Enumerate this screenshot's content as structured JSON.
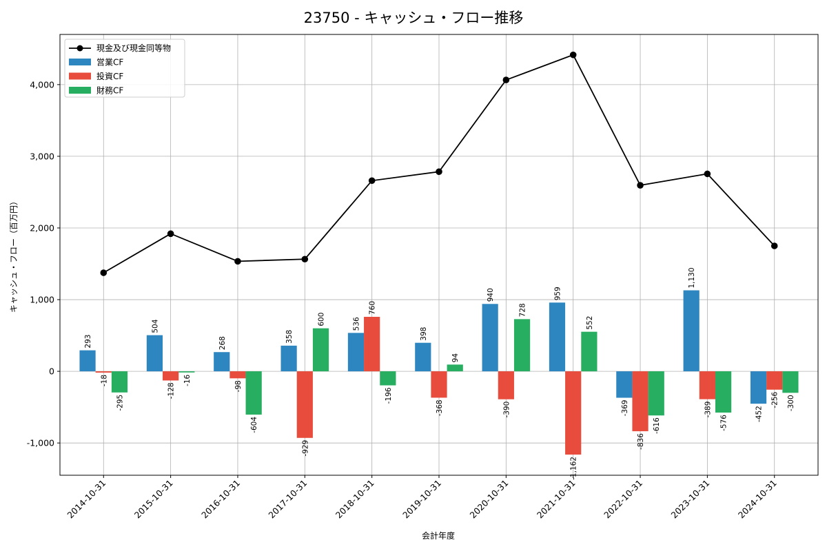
{
  "chart_data": {
    "type": "bar",
    "title": "23750 - キャッシュ・フロー推移",
    "xlabel": "会計年度",
    "ylabel": "キャッシュ・フロー（百万円）",
    "ylim": [
      -1450,
      4700
    ],
    "yticks": [
      -1000,
      0,
      1000,
      2000,
      3000,
      4000
    ],
    "ytick_labels": [
      "-1,000",
      "0",
      "1,000",
      "2,000",
      "3,000",
      "4,000"
    ],
    "grid": true,
    "legend_position": "top-left",
    "categories": [
      "2014-10-31",
      "2015-10-31",
      "2016-10-31",
      "2017-10-31",
      "2018-10-31",
      "2019-10-31",
      "2020-10-31",
      "2021-10-31",
      "2022-10-31",
      "2023-10-31",
      "2024-10-31"
    ],
    "line_series": {
      "name": "現金及び現金同等物",
      "color": "#000000",
      "values": [
        1375,
        1920,
        1535,
        1565,
        2660,
        2785,
        4065,
        4415,
        2595,
        2755,
        1750
      ]
    },
    "series": [
      {
        "name": "営業CF",
        "color": "#2E86C1",
        "values": [
          293,
          504,
          268,
          358,
          536,
          398,
          940,
          959,
          -369,
          1130,
          -452
        ],
        "labels": [
          "293",
          "504",
          "268",
          "358",
          "536",
          "398",
          "940",
          "959",
          "-369",
          "1,130",
          "-452"
        ]
      },
      {
        "name": "投資CF",
        "color": "#E74C3C",
        "values": [
          -18,
          -128,
          -98,
          -929,
          760,
          -368,
          -390,
          -1162,
          -836,
          -389,
          -256
        ],
        "labels": [
          "-18",
          "-128",
          "-98",
          "-929",
          "760",
          "-368",
          "-390",
          "-1,162",
          "-836",
          "-389",
          "-256"
        ]
      },
      {
        "name": "財務CF",
        "color": "#27AE60",
        "values": [
          -295,
          -16,
          -604,
          600,
          -196,
          94,
          728,
          552,
          -616,
          -576,
          -300
        ],
        "labels": [
          "-295",
          "-16",
          "-604",
          "600",
          "-196",
          "94",
          "728",
          "552",
          "-616",
          "-576",
          "-300"
        ]
      }
    ]
  }
}
